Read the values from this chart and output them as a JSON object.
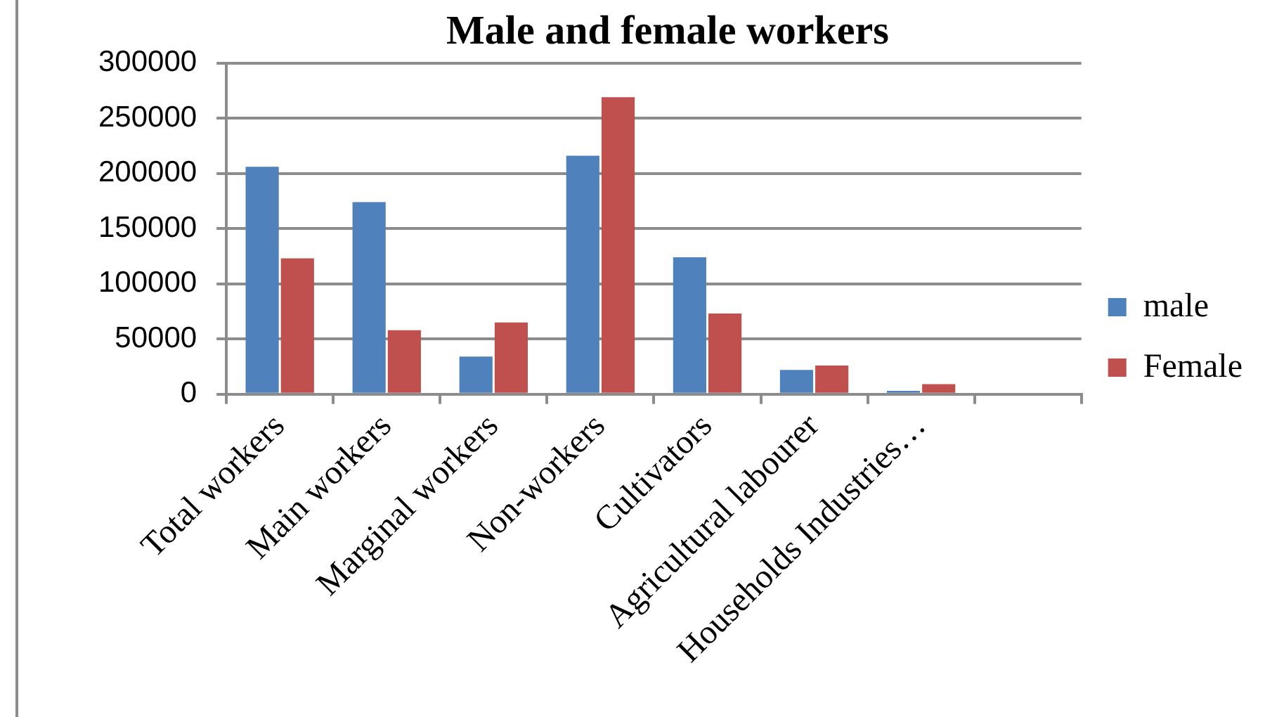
{
  "chart_data": {
    "type": "bar",
    "title": "Male and female workers",
    "categories": [
      "Total workers",
      "Main workers",
      "Marginal workers",
      "Non-workers",
      "Cultivators",
      "Agricultural labourer",
      "Households Industries…",
      null
    ],
    "series": [
      {
        "name": "male",
        "color": "#4f81bd",
        "values": [
          206000,
          174000,
          34000,
          216000,
          124000,
          22000,
          3000,
          null
        ]
      },
      {
        "name": "Female",
        "color": "#c0504d",
        "values": [
          123000,
          58000,
          65000,
          269000,
          73000,
          26000,
          9000,
          null
        ]
      }
    ],
    "ylim": [
      0,
      300000
    ],
    "yticks": [
      0,
      50000,
      100000,
      150000,
      200000,
      250000,
      300000
    ],
    "grid": "y",
    "legend": "right"
  }
}
